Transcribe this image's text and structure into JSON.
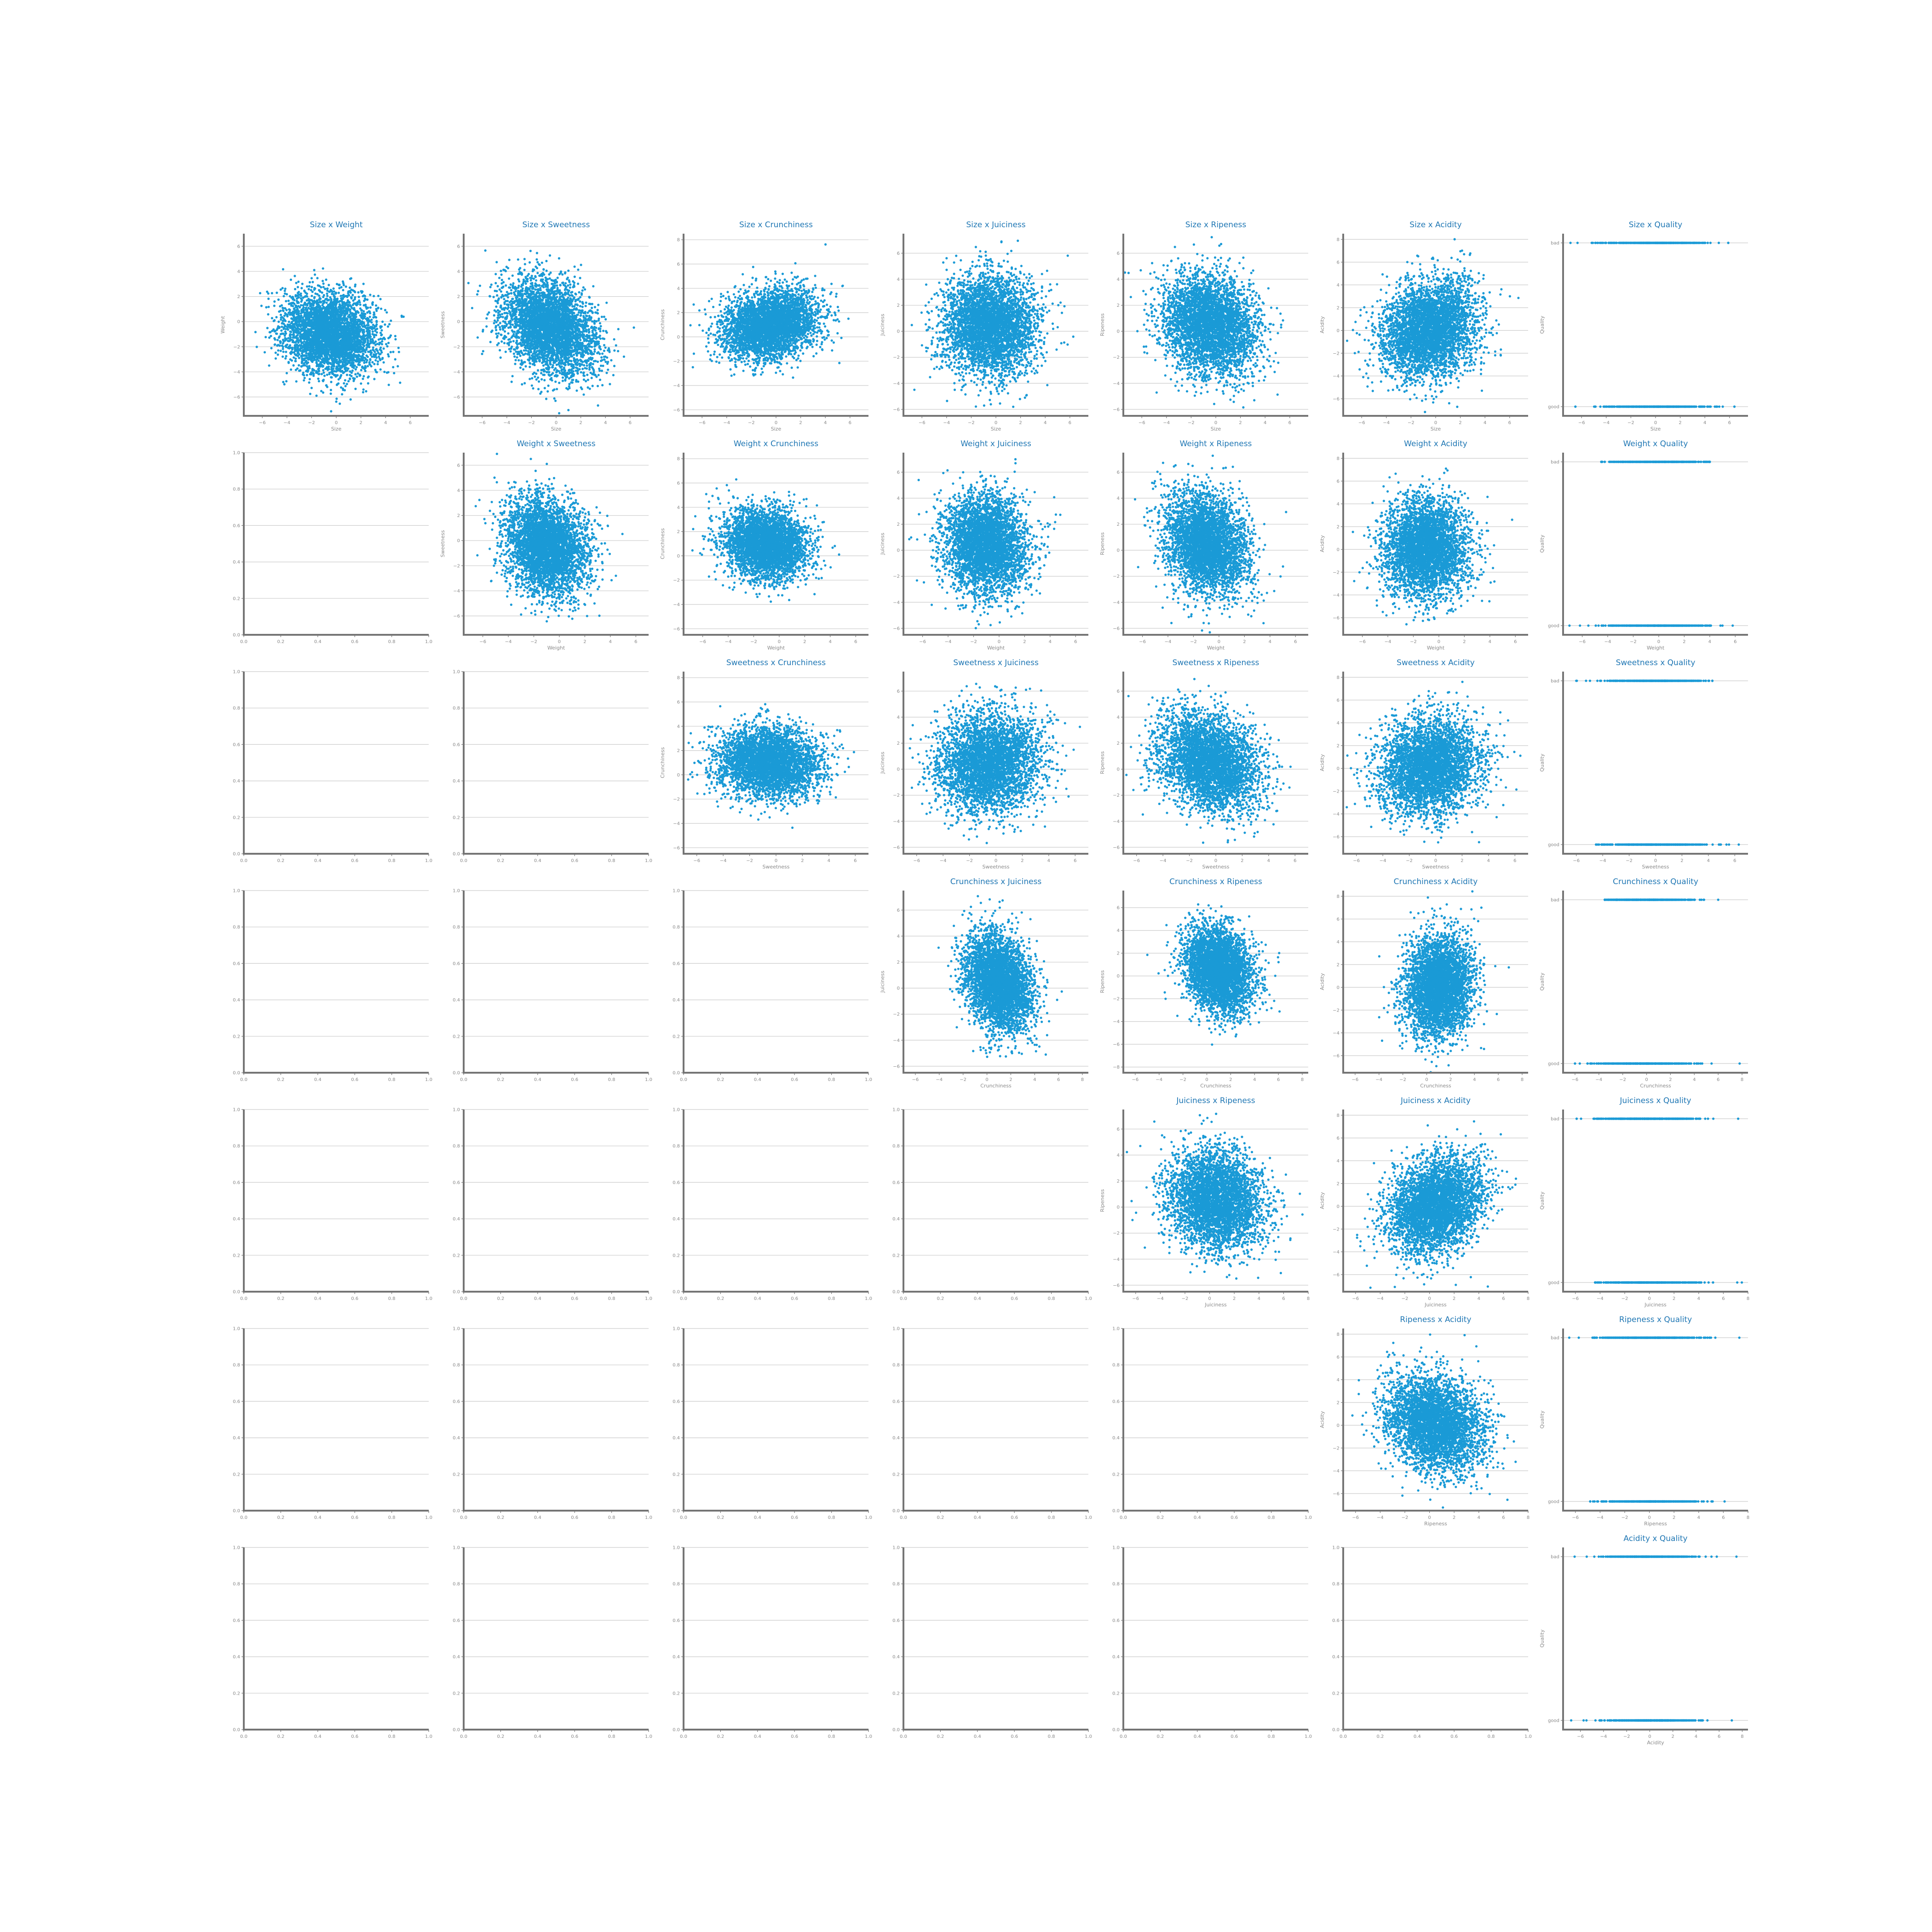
{
  "figure": {
    "features": [
      "Size",
      "Weight",
      "Sweetness",
      "Crunchiness",
      "Juiciness",
      "Ripeness",
      "Acidity"
    ],
    "target": "Quality",
    "quality_levels": [
      "bad",
      "good"
    ],
    "point_color": "#1a9ad6",
    "title_color": "#1f77b4",
    "empty_tick_labels": {
      "x": [
        "0.0",
        "0.2",
        "0.4",
        "0.6",
        "0.8",
        "1.0"
      ],
      "y": [
        "0.0",
        "0.2",
        "0.4",
        "0.6",
        "0.8",
        "1.0"
      ]
    }
  },
  "chart_data": [
    {
      "type": "scatter",
      "title": "Size x Weight",
      "xlabel": "Size",
      "ylabel": "Weight",
      "xlim": [
        -7.5,
        7.5
      ],
      "ylim": [
        -7.5,
        7.0
      ],
      "xticks": [
        -6,
        -4,
        -2,
        0,
        2,
        4,
        6
      ],
      "yticks": [
        -6,
        -4,
        -2,
        0,
        2,
        4,
        6
      ],
      "corr": -0.17,
      "x_mean": -0.5,
      "y_mean": -1.0,
      "x_sd": 1.9,
      "y_sd": 1.6,
      "n_points": 4000
    },
    {
      "type": "scatter",
      "title": "Size x Sweetness",
      "xlabel": "Size",
      "ylabel": "Sweetness",
      "xlim": [
        -7.5,
        7.5
      ],
      "ylim": [
        -7.5,
        7.0
      ],
      "xticks": [
        -6,
        -4,
        -2,
        0,
        2,
        4,
        6
      ],
      "yticks": [
        -6,
        -4,
        -2,
        0,
        2,
        4,
        6
      ],
      "corr": -0.32,
      "x_mean": -0.5,
      "y_mean": -0.5,
      "x_sd": 1.9,
      "y_sd": 1.9,
      "n_points": 4000
    },
    {
      "type": "scatter",
      "title": "Size x Crunchiness",
      "xlabel": "Size",
      "ylabel": "Crunchiness",
      "xlim": [
        -7.5,
        7.5
      ],
      "ylim": [
        -6.5,
        8.5
      ],
      "xticks": [
        -6,
        -4,
        -2,
        0,
        2,
        4,
        6
      ],
      "yticks": [
        -6,
        -4,
        -2,
        0,
        2,
        4,
        6,
        8
      ],
      "corr": 0.17,
      "x_mean": -0.5,
      "y_mean": 1.0,
      "x_sd": 1.9,
      "y_sd": 1.4,
      "n_points": 4000
    },
    {
      "type": "scatter",
      "title": "Size x Juiciness",
      "xlabel": "Size",
      "ylabel": "Juiciness",
      "xlim": [
        -7.5,
        7.5
      ],
      "ylim": [
        -6.5,
        7.5
      ],
      "xticks": [
        -6,
        -4,
        -2,
        0,
        2,
        4,
        6
      ],
      "yticks": [
        -6,
        -4,
        -2,
        0,
        2,
        4,
        6
      ],
      "corr": -0.02,
      "x_mean": -0.5,
      "y_mean": 0.5,
      "x_sd": 1.9,
      "y_sd": 1.9,
      "n_points": 4000
    },
    {
      "type": "scatter",
      "title": "Size x Ripeness",
      "xlabel": "Size",
      "ylabel": "Ripeness",
      "xlim": [
        -7.5,
        7.5
      ],
      "ylim": [
        -6.5,
        7.5
      ],
      "xticks": [
        -6,
        -4,
        -2,
        0,
        2,
        4,
        6
      ],
      "yticks": [
        -6,
        -4,
        -2,
        0,
        2,
        4,
        6
      ],
      "corr": -0.13,
      "x_mean": -0.5,
      "y_mean": 0.5,
      "x_sd": 1.9,
      "y_sd": 1.9,
      "n_points": 4000
    },
    {
      "type": "scatter",
      "title": "Size x Acidity",
      "xlabel": "Size",
      "ylabel": "Acidity",
      "xlim": [
        -7.5,
        7.5
      ],
      "ylim": [
        -7.5,
        8.5
      ],
      "xticks": [
        -6,
        -4,
        -2,
        0,
        2,
        4,
        6
      ],
      "yticks": [
        -6,
        -4,
        -2,
        0,
        2,
        4,
        6,
        8
      ],
      "corr": 0.2,
      "x_mean": -0.5,
      "y_mean": 0.1,
      "x_sd": 1.9,
      "y_sd": 2.1,
      "n_points": 4000
    },
    {
      "type": "scatter",
      "title": "Size x Quality",
      "xlabel": "Size",
      "ylabel": "Quality",
      "xlim": [
        -7.5,
        7.5
      ],
      "categories_y": [
        "bad",
        "good"
      ],
      "xticks": [
        -6,
        -4,
        -2,
        0,
        2,
        4,
        6
      ],
      "range_bad": [
        -6.9,
        5.9
      ],
      "range_good": [
        -6.5,
        6.4
      ],
      "n_points": 4000
    },
    {
      "type": "scatter",
      "title": "Weight x Sweetness",
      "xlabel": "Weight",
      "ylabel": "Sweetness",
      "xlim": [
        -7.5,
        7.0
      ],
      "ylim": [
        -7.5,
        7.0
      ],
      "xticks": [
        -6,
        -4,
        -2,
        0,
        2,
        4,
        6
      ],
      "yticks": [
        -6,
        -4,
        -2,
        0,
        2,
        4,
        6
      ],
      "corr": -0.17,
      "x_mean": -1.0,
      "y_mean": -0.5,
      "x_sd": 1.6,
      "y_sd": 1.9,
      "n_points": 4000
    },
    {
      "type": "scatter",
      "title": "Weight x Crunchiness",
      "xlabel": "Weight",
      "ylabel": "Crunchiness",
      "xlim": [
        -7.5,
        7.0
      ],
      "ylim": [
        -6.5,
        8.5
      ],
      "xticks": [
        -6,
        -4,
        -2,
        0,
        2,
        4,
        6
      ],
      "yticks": [
        -6,
        -4,
        -2,
        0,
        2,
        4,
        6,
        8
      ],
      "corr": -0.1,
      "x_mean": -1.0,
      "y_mean": 1.0,
      "x_sd": 1.6,
      "y_sd": 1.4,
      "n_points": 4000
    },
    {
      "type": "scatter",
      "title": "Weight x Juiciness",
      "xlabel": "Weight",
      "ylabel": "Juiciness",
      "xlim": [
        -7.5,
        7.0
      ],
      "ylim": [
        -6.5,
        7.5
      ],
      "xticks": [
        -6,
        -4,
        -2,
        0,
        2,
        4,
        6
      ],
      "yticks": [
        -6,
        -4,
        -2,
        0,
        2,
        4,
        6
      ],
      "corr": -0.09,
      "x_mean": -1.0,
      "y_mean": 0.5,
      "x_sd": 1.6,
      "y_sd": 1.9,
      "n_points": 4000
    },
    {
      "type": "scatter",
      "title": "Weight x Ripeness",
      "xlabel": "Weight",
      "ylabel": "Ripeness",
      "xlim": [
        -7.5,
        7.0
      ],
      "ylim": [
        -6.5,
        7.5
      ],
      "xticks": [
        -6,
        -4,
        -2,
        0,
        2,
        4,
        6
      ],
      "yticks": [
        -6,
        -4,
        -2,
        0,
        2,
        4,
        6
      ],
      "corr": -0.24,
      "x_mean": -1.0,
      "y_mean": 0.5,
      "x_sd": 1.6,
      "y_sd": 1.9,
      "n_points": 4000
    },
    {
      "type": "scatter",
      "title": "Weight x Acidity",
      "xlabel": "Weight",
      "ylabel": "Acidity",
      "xlim": [
        -7.5,
        7.0
      ],
      "ylim": [
        -7.5,
        8.5
      ],
      "xticks": [
        -6,
        -4,
        -2,
        0,
        2,
        4,
        6
      ],
      "yticks": [
        -6,
        -4,
        -2,
        0,
        2,
        4,
        6,
        8
      ],
      "corr": 0.02,
      "x_mean": -1.0,
      "y_mean": 0.1,
      "x_sd": 1.6,
      "y_sd": 2.1,
      "n_points": 4000
    },
    {
      "type": "scatter",
      "title": "Weight x Quality",
      "xlabel": "Weight",
      "ylabel": "Quality",
      "xlim": [
        -7.5,
        7.0
      ],
      "categories_y": [
        "bad",
        "good"
      ],
      "xticks": [
        -6,
        -4,
        -2,
        0,
        2,
        4,
        6
      ],
      "range_bad": [
        -4.5,
        4.0
      ],
      "range_good": [
        -7.0,
        5.8
      ],
      "n_points": 4000
    },
    {
      "type": "scatter",
      "title": "Sweetness x Crunchiness",
      "xlabel": "Sweetness",
      "ylabel": "Crunchiness",
      "xlim": [
        -7.0,
        7.0
      ],
      "ylim": [
        -6.5,
        8.5
      ],
      "xticks": [
        -6,
        -4,
        -2,
        0,
        2,
        4,
        6
      ],
      "yticks": [
        -6,
        -4,
        -2,
        0,
        2,
        4,
        6,
        8
      ],
      "corr": -0.04,
      "x_mean": -0.5,
      "y_mean": 1.0,
      "x_sd": 1.9,
      "y_sd": 1.4,
      "n_points": 4000
    },
    {
      "type": "scatter",
      "title": "Sweetness x Juiciness",
      "xlabel": "Sweetness",
      "ylabel": "Juiciness",
      "xlim": [
        -7.0,
        7.0
      ],
      "ylim": [
        -6.5,
        7.5
      ],
      "xticks": [
        -6,
        -4,
        -2,
        0,
        2,
        4,
        6
      ],
      "yticks": [
        -6,
        -4,
        -2,
        0,
        2,
        4,
        6
      ],
      "corr": 0.1,
      "x_mean": -0.5,
      "y_mean": 0.5,
      "x_sd": 1.9,
      "y_sd": 1.9,
      "n_points": 4000
    },
    {
      "type": "scatter",
      "title": "Sweetness x Ripeness",
      "xlabel": "Sweetness",
      "ylabel": "Ripeness",
      "xlim": [
        -7.0,
        7.0
      ],
      "ylim": [
        -6.5,
        7.5
      ],
      "xticks": [
        -6,
        -4,
        -2,
        0,
        2,
        4,
        6
      ],
      "yticks": [
        -6,
        -4,
        -2,
        0,
        2,
        4,
        6
      ],
      "corr": -0.28,
      "x_mean": -0.5,
      "y_mean": 0.5,
      "x_sd": 1.9,
      "y_sd": 1.9,
      "n_points": 4000
    },
    {
      "type": "scatter",
      "title": "Sweetness x Acidity",
      "xlabel": "Sweetness",
      "ylabel": "Acidity",
      "xlim": [
        -7.0,
        7.0
      ],
      "ylim": [
        -7.5,
        8.5
      ],
      "xticks": [
        -6,
        -4,
        -2,
        0,
        2,
        4,
        6
      ],
      "yticks": [
        -6,
        -4,
        -2,
        0,
        2,
        4,
        6,
        8
      ],
      "corr": 0.1,
      "x_mean": -0.5,
      "y_mean": 0.1,
      "x_sd": 1.9,
      "y_sd": 2.1,
      "n_points": 4000
    },
    {
      "type": "scatter",
      "title": "Sweetness x Quality",
      "xlabel": "Sweetness",
      "ylabel": "Quality",
      "xlim": [
        -7.0,
        7.0
      ],
      "categories_y": [
        "bad",
        "good"
      ],
      "xticks": [
        -6,
        -4,
        -2,
        0,
        2,
        4,
        6
      ],
      "range_bad": [
        -6.0,
        4.3
      ],
      "range_good": [
        -4.5,
        6.3
      ],
      "n_points": 4000
    },
    {
      "type": "scatter",
      "title": "Crunchiness x Juiciness",
      "xlabel": "Crunchiness",
      "ylabel": "Juiciness",
      "xlim": [
        -7.0,
        8.5
      ],
      "ylim": [
        -6.5,
        7.5
      ],
      "xticks": [
        -6,
        -4,
        -2,
        0,
        2,
        4,
        6,
        8
      ],
      "yticks": [
        -6,
        -4,
        -2,
        0,
        2,
        4,
        6
      ],
      "corr": -0.26,
      "x_mean": 1.0,
      "y_mean": 0.5,
      "x_sd": 1.4,
      "y_sd": 1.9,
      "n_points": 4000
    },
    {
      "type": "scatter",
      "title": "Crunchiness x Ripeness",
      "xlabel": "Crunchiness",
      "ylabel": "Ripeness",
      "xlim": [
        -7.0,
        8.5
      ],
      "ylim": [
        -8.5,
        7.5
      ],
      "xticks": [
        -6,
        -4,
        -2,
        0,
        2,
        4,
        6,
        8
      ],
      "yticks": [
        -8,
        -6,
        -4,
        -2,
        0,
        2,
        4,
        6
      ],
      "corr": -0.2,
      "x_mean": 1.0,
      "y_mean": 0.5,
      "x_sd": 1.4,
      "y_sd": 1.9,
      "n_points": 4000
    },
    {
      "type": "scatter",
      "title": "Crunchiness x Acidity",
      "xlabel": "Crunchiness",
      "ylabel": "Acidity",
      "xlim": [
        -7.0,
        8.5
      ],
      "ylim": [
        -7.5,
        8.5
      ],
      "xticks": [
        -6,
        -4,
        -2,
        0,
        2,
        4,
        6,
        8
      ],
      "yticks": [
        -6,
        -4,
        -2,
        0,
        2,
        4,
        6,
        8
      ],
      "corr": 0.07,
      "x_mean": 1.0,
      "y_mean": 0.1,
      "x_sd": 1.4,
      "y_sd": 2.1,
      "n_points": 4000
    },
    {
      "type": "scatter",
      "title": "Crunchiness x Quality",
      "xlabel": "Crunchiness",
      "ylabel": "Quality",
      "xlim": [
        -7.0,
        8.5
      ],
      "categories_y": [
        "bad",
        "good"
      ],
      "xticks": [
        -6,
        -4,
        -2,
        0,
        2,
        4,
        6,
        8
      ],
      "range_bad": [
        -3.5,
        6.0
      ],
      "range_good": [
        -6.0,
        7.8
      ],
      "n_points": 4000
    },
    {
      "type": "scatter",
      "title": "Juiciness x Ripeness",
      "xlabel": "Juiciness",
      "ylabel": "Ripeness",
      "xlim": [
        -7.0,
        8.0
      ],
      "ylim": [
        -6.5,
        7.5
      ],
      "xticks": [
        -6,
        -4,
        -2,
        0,
        2,
        4,
        6,
        8
      ],
      "yticks": [
        -6,
        -4,
        -2,
        0,
        2,
        4,
        6
      ],
      "corr": -0.1,
      "x_mean": 0.5,
      "y_mean": 0.5,
      "x_sd": 1.9,
      "y_sd": 1.9,
      "n_points": 4000
    },
    {
      "type": "scatter",
      "title": "Juiciness x Acidity",
      "xlabel": "Juiciness",
      "ylabel": "Acidity",
      "xlim": [
        -7.0,
        8.0
      ],
      "ylim": [
        -7.5,
        8.5
      ],
      "xticks": [
        -6,
        -4,
        -2,
        0,
        2,
        4,
        6,
        8
      ],
      "yticks": [
        -6,
        -4,
        -2,
        0,
        2,
        4,
        6,
        8
      ],
      "corr": 0.25,
      "x_mean": 0.5,
      "y_mean": 0.1,
      "x_sd": 1.9,
      "y_sd": 2.1,
      "n_points": 4000
    },
    {
      "type": "scatter",
      "title": "Juiciness x Quality",
      "xlabel": "Juiciness",
      "ylabel": "Quality",
      "xlim": [
        -7.0,
        8.0
      ],
      "categories_y": [
        "bad",
        "good"
      ],
      "xticks": [
        -6,
        -4,
        -2,
        0,
        2,
        4,
        6,
        8
      ],
      "range_bad": [
        -5.9,
        7.2
      ],
      "range_good": [
        -4.4,
        7.5
      ],
      "n_points": 4000
    },
    {
      "type": "scatter",
      "title": "Ripeness x Acidity",
      "xlabel": "Ripeness",
      "ylabel": "Acidity",
      "xlim": [
        -7.0,
        8.0
      ],
      "ylim": [
        -7.5,
        8.5
      ],
      "xticks": [
        -6,
        -4,
        -2,
        0,
        2,
        4,
        6,
        8
      ],
      "yticks": [
        -6,
        -4,
        -2,
        0,
        2,
        4,
        6,
        8
      ],
      "corr": -0.2,
      "x_mean": 0.5,
      "y_mean": 0.1,
      "x_sd": 1.9,
      "y_sd": 2.1,
      "n_points": 4000
    },
    {
      "type": "scatter",
      "title": "Ripeness x Quality",
      "xlabel": "Ripeness",
      "ylabel": "Quality",
      "xlim": [
        -7.0,
        8.0
      ],
      "categories_y": [
        "bad",
        "good"
      ],
      "xticks": [
        -6,
        -4,
        -2,
        0,
        2,
        4,
        6,
        8
      ],
      "range_bad": [
        -6.5,
        7.3
      ],
      "range_good": [
        -4.8,
        6.1
      ],
      "n_points": 4000
    },
    {
      "type": "scatter",
      "title": "Acidity x Quality",
      "xlabel": "Acidity",
      "ylabel": "Quality",
      "xlim": [
        -7.5,
        8.5
      ],
      "categories_y": [
        "bad",
        "good"
      ],
      "xticks": [
        -6,
        -4,
        -2,
        0,
        2,
        4,
        6,
        8
      ],
      "range_bad": [
        -6.5,
        7.5
      ],
      "range_good": [
        -6.8,
        7.1
      ],
      "n_points": 4000
    }
  ]
}
